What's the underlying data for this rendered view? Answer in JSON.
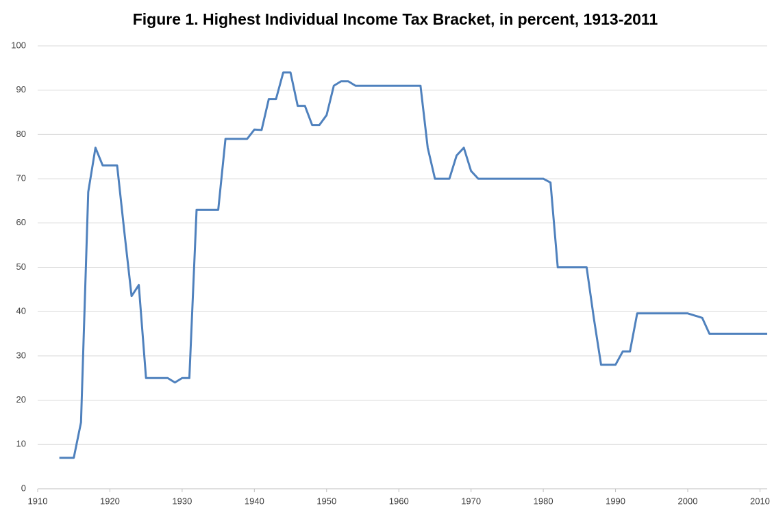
{
  "chart_data": {
    "type": "line",
    "title": "Figure 1. Highest Individual Income Tax Bracket, in percent, 1913-2011",
    "x": [
      1913,
      1914,
      1915,
      1916,
      1917,
      1918,
      1919,
      1920,
      1921,
      1922,
      1923,
      1924,
      1925,
      1926,
      1927,
      1928,
      1929,
      1930,
      1931,
      1932,
      1933,
      1934,
      1935,
      1936,
      1937,
      1938,
      1939,
      1940,
      1941,
      1942,
      1943,
      1944,
      1945,
      1946,
      1947,
      1948,
      1949,
      1950,
      1951,
      1952,
      1953,
      1954,
      1955,
      1956,
      1957,
      1958,
      1959,
      1960,
      1961,
      1962,
      1963,
      1964,
      1965,
      1966,
      1967,
      1968,
      1969,
      1970,
      1971,
      1972,
      1973,
      1974,
      1975,
      1976,
      1977,
      1978,
      1979,
      1980,
      1981,
      1982,
      1983,
      1984,
      1985,
      1986,
      1987,
      1988,
      1989,
      1990,
      1991,
      1992,
      1993,
      1994,
      1995,
      1996,
      1997,
      1998,
      1999,
      2000,
      2001,
      2002,
      2003,
      2004,
      2005,
      2006,
      2007,
      2008,
      2009,
      2010,
      2011
    ],
    "values": [
      7,
      7,
      7,
      15,
      67,
      77,
      73,
      73,
      73,
      58,
      43.5,
      46,
      25,
      25,
      25,
      25,
      24,
      25,
      25,
      63,
      63,
      63,
      63,
      79,
      79,
      79,
      79,
      81.1,
      81,
      88,
      88,
      94,
      94,
      86.45,
      86.45,
      82.13,
      82.13,
      84.36,
      91,
      92,
      92,
      91,
      91,
      91,
      91,
      91,
      91,
      91,
      91,
      91,
      91,
      77,
      70,
      70,
      70,
      75.25,
      77,
      71.75,
      70,
      70,
      70,
      70,
      70,
      70,
      70,
      70,
      70,
      70,
      69.13,
      50,
      50,
      50,
      50,
      50,
      38.5,
      28,
      28,
      28,
      31,
      31,
      39.6,
      39.6,
      39.6,
      39.6,
      39.6,
      39.6,
      39.6,
      39.6,
      39.1,
      38.6,
      35,
      35,
      35,
      35,
      35,
      35,
      35,
      35,
      35
    ],
    "color": "#4f81bd",
    "xlim": [
      1910,
      2011
    ],
    "xticks": [
      1910,
      1920,
      1930,
      1940,
      1950,
      1960,
      1970,
      1980,
      1990,
      2000,
      2010
    ],
    "ylim": [
      0,
      100
    ],
    "yticks": [
      0,
      10,
      20,
      30,
      40,
      50,
      60,
      70,
      80,
      90,
      100
    ],
    "grid": true
  }
}
